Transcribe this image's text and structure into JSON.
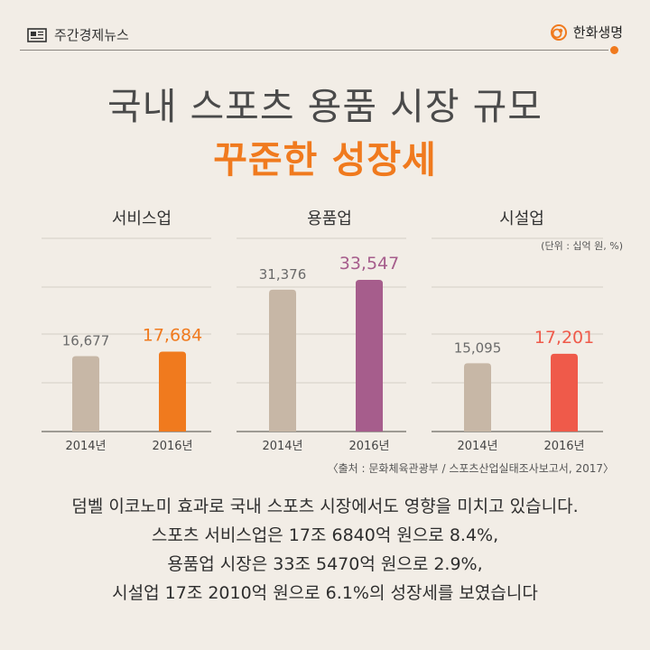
{
  "header": {
    "left_label": "주간경제뉴스",
    "left_icon": "newspaper-icon",
    "right_label": "한화생명",
    "right_icon": "hanwha-logo-icon"
  },
  "title": {
    "line1": "국내 스포츠 용품 시장 규모",
    "line2": "꾸준한 성장세"
  },
  "colors": {
    "accent": "#f07a1e",
    "base_bar": "#c7b7a6",
    "service_2016": "#f07a1e",
    "goods_2016": "#a65d8c",
    "facility_2016": "#ef5a4a",
    "grid": "#d4cec6"
  },
  "unit_note": "(단위 : 십억 원, %)",
  "chart_data": [
    {
      "type": "bar",
      "title": "서비스업",
      "categories": [
        "2014년",
        "2016년"
      ],
      "values": [
        16677,
        17684
      ],
      "value_labels": [
        "16,677",
        "17,684"
      ]
    },
    {
      "type": "bar",
      "title": "용품업",
      "categories": [
        "2014년",
        "2016년"
      ],
      "values": [
        31376,
        33547
      ],
      "value_labels": [
        "31,376",
        "33,547"
      ]
    },
    {
      "type": "bar",
      "title": "시설업",
      "categories": [
        "2014년",
        "2016년"
      ],
      "values": [
        15095,
        17201
      ],
      "value_labels": [
        "15,095",
        "17,201"
      ]
    }
  ],
  "source": "〈출처 : 문화체육관광부 / 스포츠산업실태조사보고서, 2017〉",
  "body_lines": [
    "덤벨 이코노미 효과로 국내 스포츠 시장에서도 영향을 미치고 있습니다.",
    "스포츠 서비스업은 17조 6840억 원으로 8.4%,",
    "용품업 시장은 33조 5470억 원으로 2.9%,",
    "시설업 17조 2010억 원으로 6.1%의 성장세를 보였습니다"
  ]
}
